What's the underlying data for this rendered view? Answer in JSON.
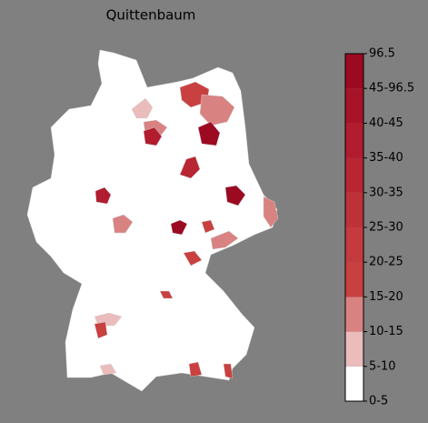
{
  "title": "Quittenbaum",
  "colorbar": {
    "labels": [
      "0-5",
      "5-10",
      "10-15",
      "15-20",
      "20-25",
      "25-30",
      "30-35",
      "35-40",
      "40-45",
      "45-96.5",
      "96.5"
    ],
    "colors": [
      "#ffffff",
      "#ebbcbc",
      "#d98282",
      "#c94040",
      "#c43a3e",
      "#bf3139",
      "#b82633",
      "#b11c2e",
      "#a71328",
      "#9c0a22"
    ]
  }
}
